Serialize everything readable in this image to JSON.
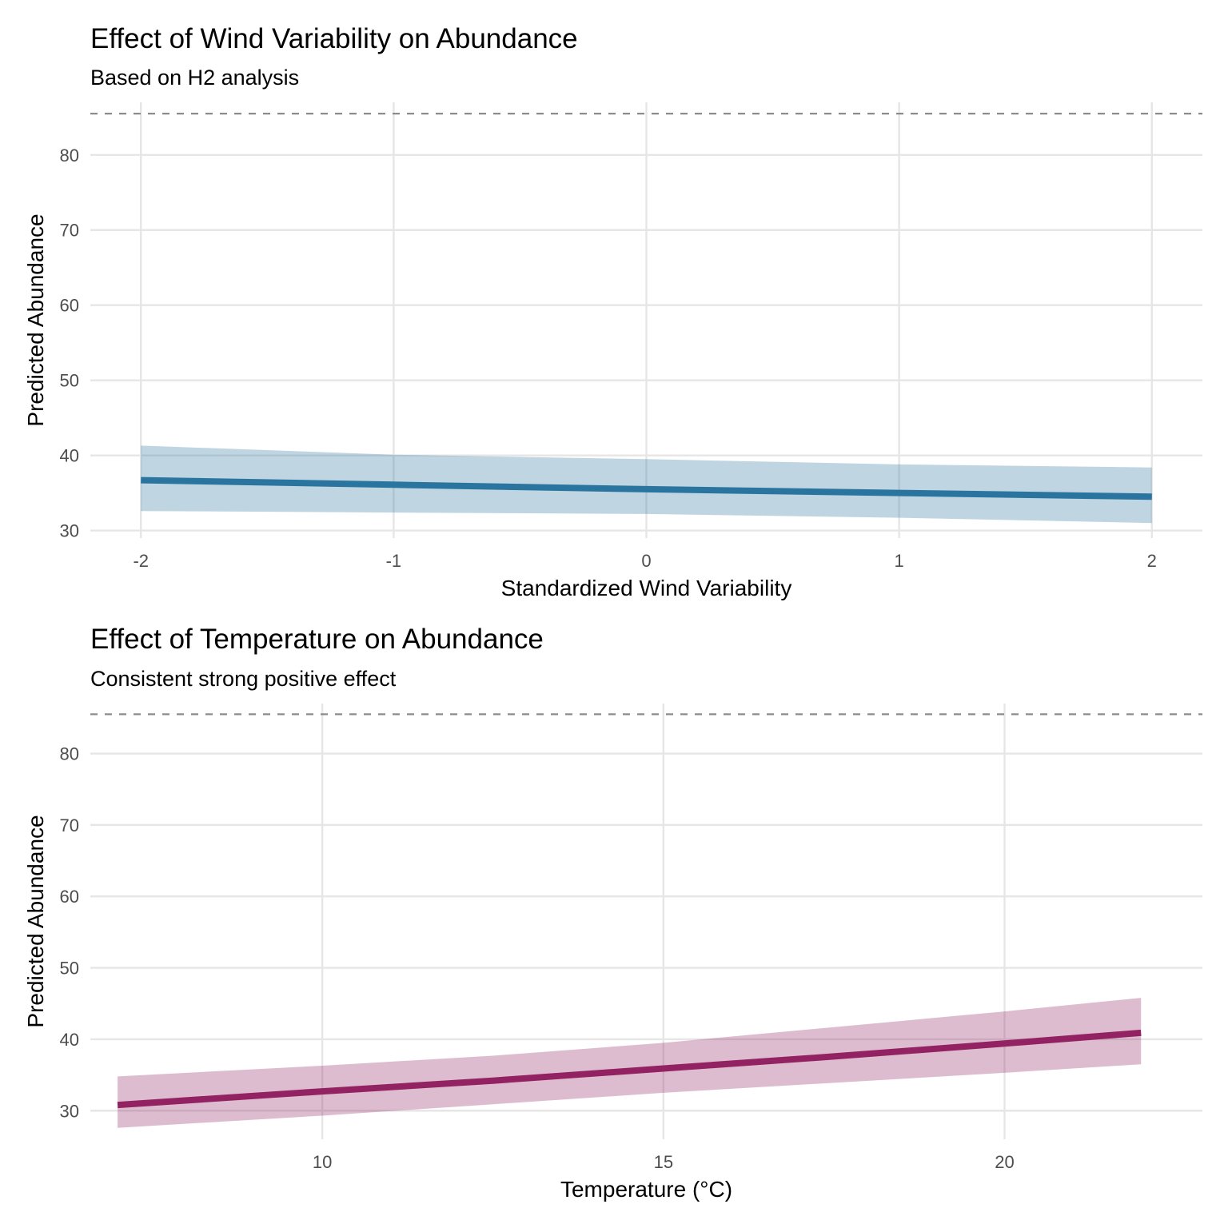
{
  "chart_data": [
    {
      "type": "line",
      "title": "Effect of Wind Variability on Abundance",
      "subtitle": "Based on H2 analysis",
      "xlabel": "Standardized Wind Variability",
      "ylabel": "Predicted Abundance",
      "xlim": [
        -2.2,
        2.2
      ],
      "ylim": [
        29,
        87
      ],
      "x_ticks": [
        "-2",
        "-1",
        "0",
        "1",
        "2"
      ],
      "y_ticks": [
        "30",
        "40",
        "50",
        "60",
        "70",
        "80"
      ],
      "reference_line_y": 85.5,
      "grid": true,
      "color": "#2a759f",
      "series": [
        {
          "x": [
            -2,
            -1,
            0,
            1,
            2
          ],
          "y": [
            36.7,
            36.1,
            35.5,
            35.0,
            34.5
          ],
          "lower": [
            32.6,
            32.4,
            32.2,
            31.7,
            31.0
          ],
          "upper": [
            41.3,
            40.1,
            39.5,
            38.8,
            38.4
          ]
        }
      ]
    },
    {
      "type": "line",
      "title": "Effect of Temperature on Abundance",
      "subtitle": "Consistent strong positive effect",
      "xlabel": "Temperature (°C)",
      "ylabel": "Predicted Abundance",
      "xlim": [
        6.6,
        22.9
      ],
      "ylim": [
        26,
        87
      ],
      "x_ticks": [
        "10",
        "15",
        "20"
      ],
      "y_ticks": [
        "30",
        "40",
        "50",
        "60",
        "70",
        "80"
      ],
      "reference_line_y": 85.5,
      "grid": true,
      "color": "#922262",
      "series": [
        {
          "x": [
            7.0,
            10.0,
            12.5,
            15.0,
            17.5,
            20.0,
            22.0
          ],
          "y": [
            30.8,
            32.7,
            34.2,
            35.9,
            37.6,
            39.4,
            40.9
          ],
          "lower": [
            27.6,
            29.3,
            30.9,
            32.5,
            33.9,
            35.3,
            36.5
          ],
          "upper": [
            34.8,
            36.3,
            37.7,
            39.5,
            41.7,
            43.9,
            45.8
          ]
        }
      ]
    }
  ]
}
